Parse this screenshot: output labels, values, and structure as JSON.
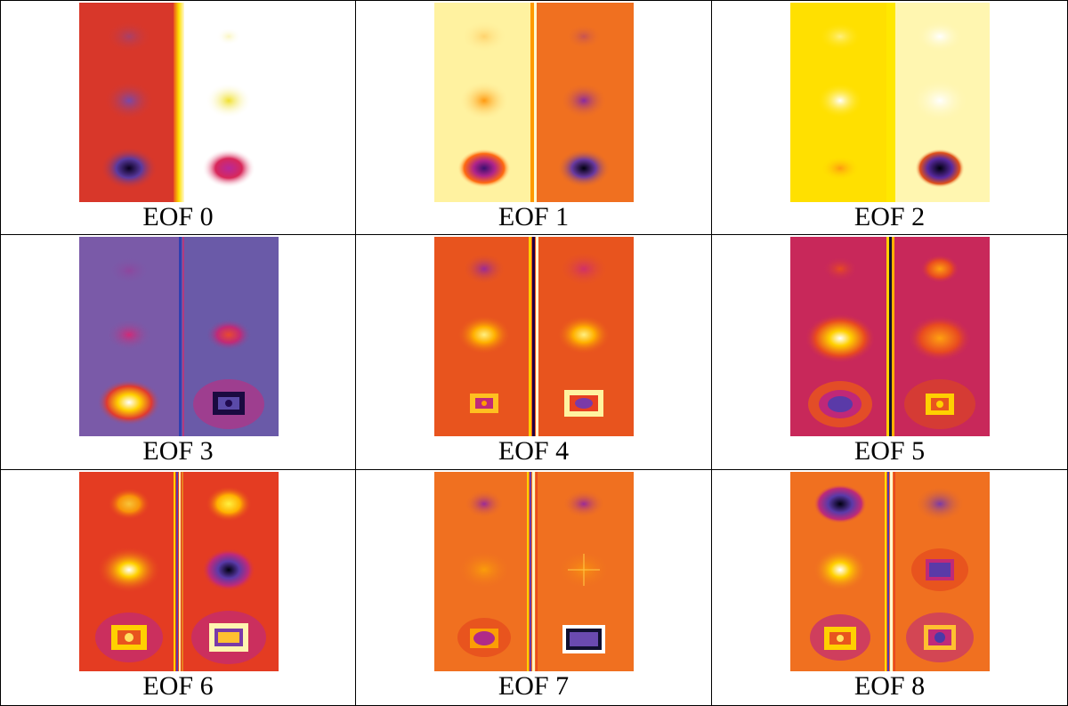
{
  "panels": [
    {
      "label": "EOF 0"
    },
    {
      "label": "EOF 1"
    },
    {
      "label": "EOF 2"
    },
    {
      "label": "EOF 3"
    },
    {
      "label": "EOF 4"
    },
    {
      "label": "EOF 5"
    },
    {
      "label": "EOF 6"
    },
    {
      "label": "EOF 7"
    },
    {
      "label": "EOF 8"
    }
  ]
}
